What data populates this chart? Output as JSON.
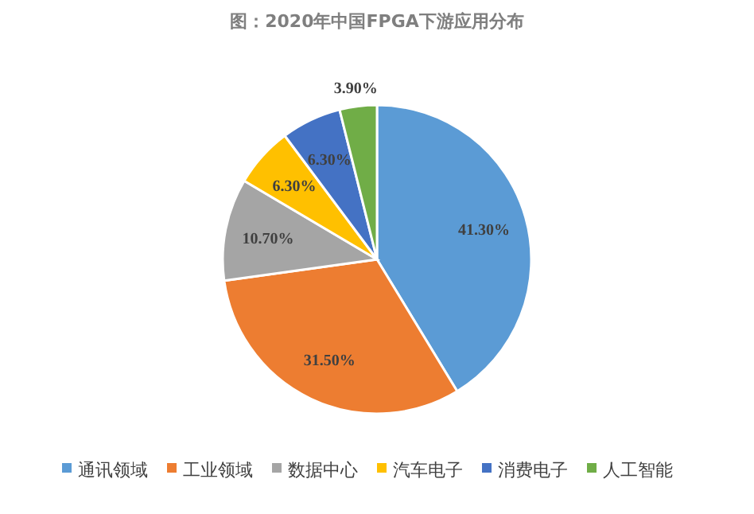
{
  "chart_data": {
    "type": "pie",
    "title": "图：2020年中国FPGA下游应用分布",
    "categories": [
      "通讯领域",
      "工业领域",
      "数据中心",
      "汽车电子",
      "消费电子",
      "人工智能"
    ],
    "values": [
      41.3,
      31.5,
      10.7,
      6.3,
      6.3,
      3.9
    ],
    "value_labels": [
      "41.30%",
      "31.50%",
      "10.70%",
      "6.30%",
      "6.30%",
      "3.90%"
    ],
    "colors": [
      "#5b9bd5",
      "#ed7d31",
      "#a5a5a5",
      "#ffc000",
      "#4472c4",
      "#70ad47"
    ],
    "legend": "bottom"
  }
}
